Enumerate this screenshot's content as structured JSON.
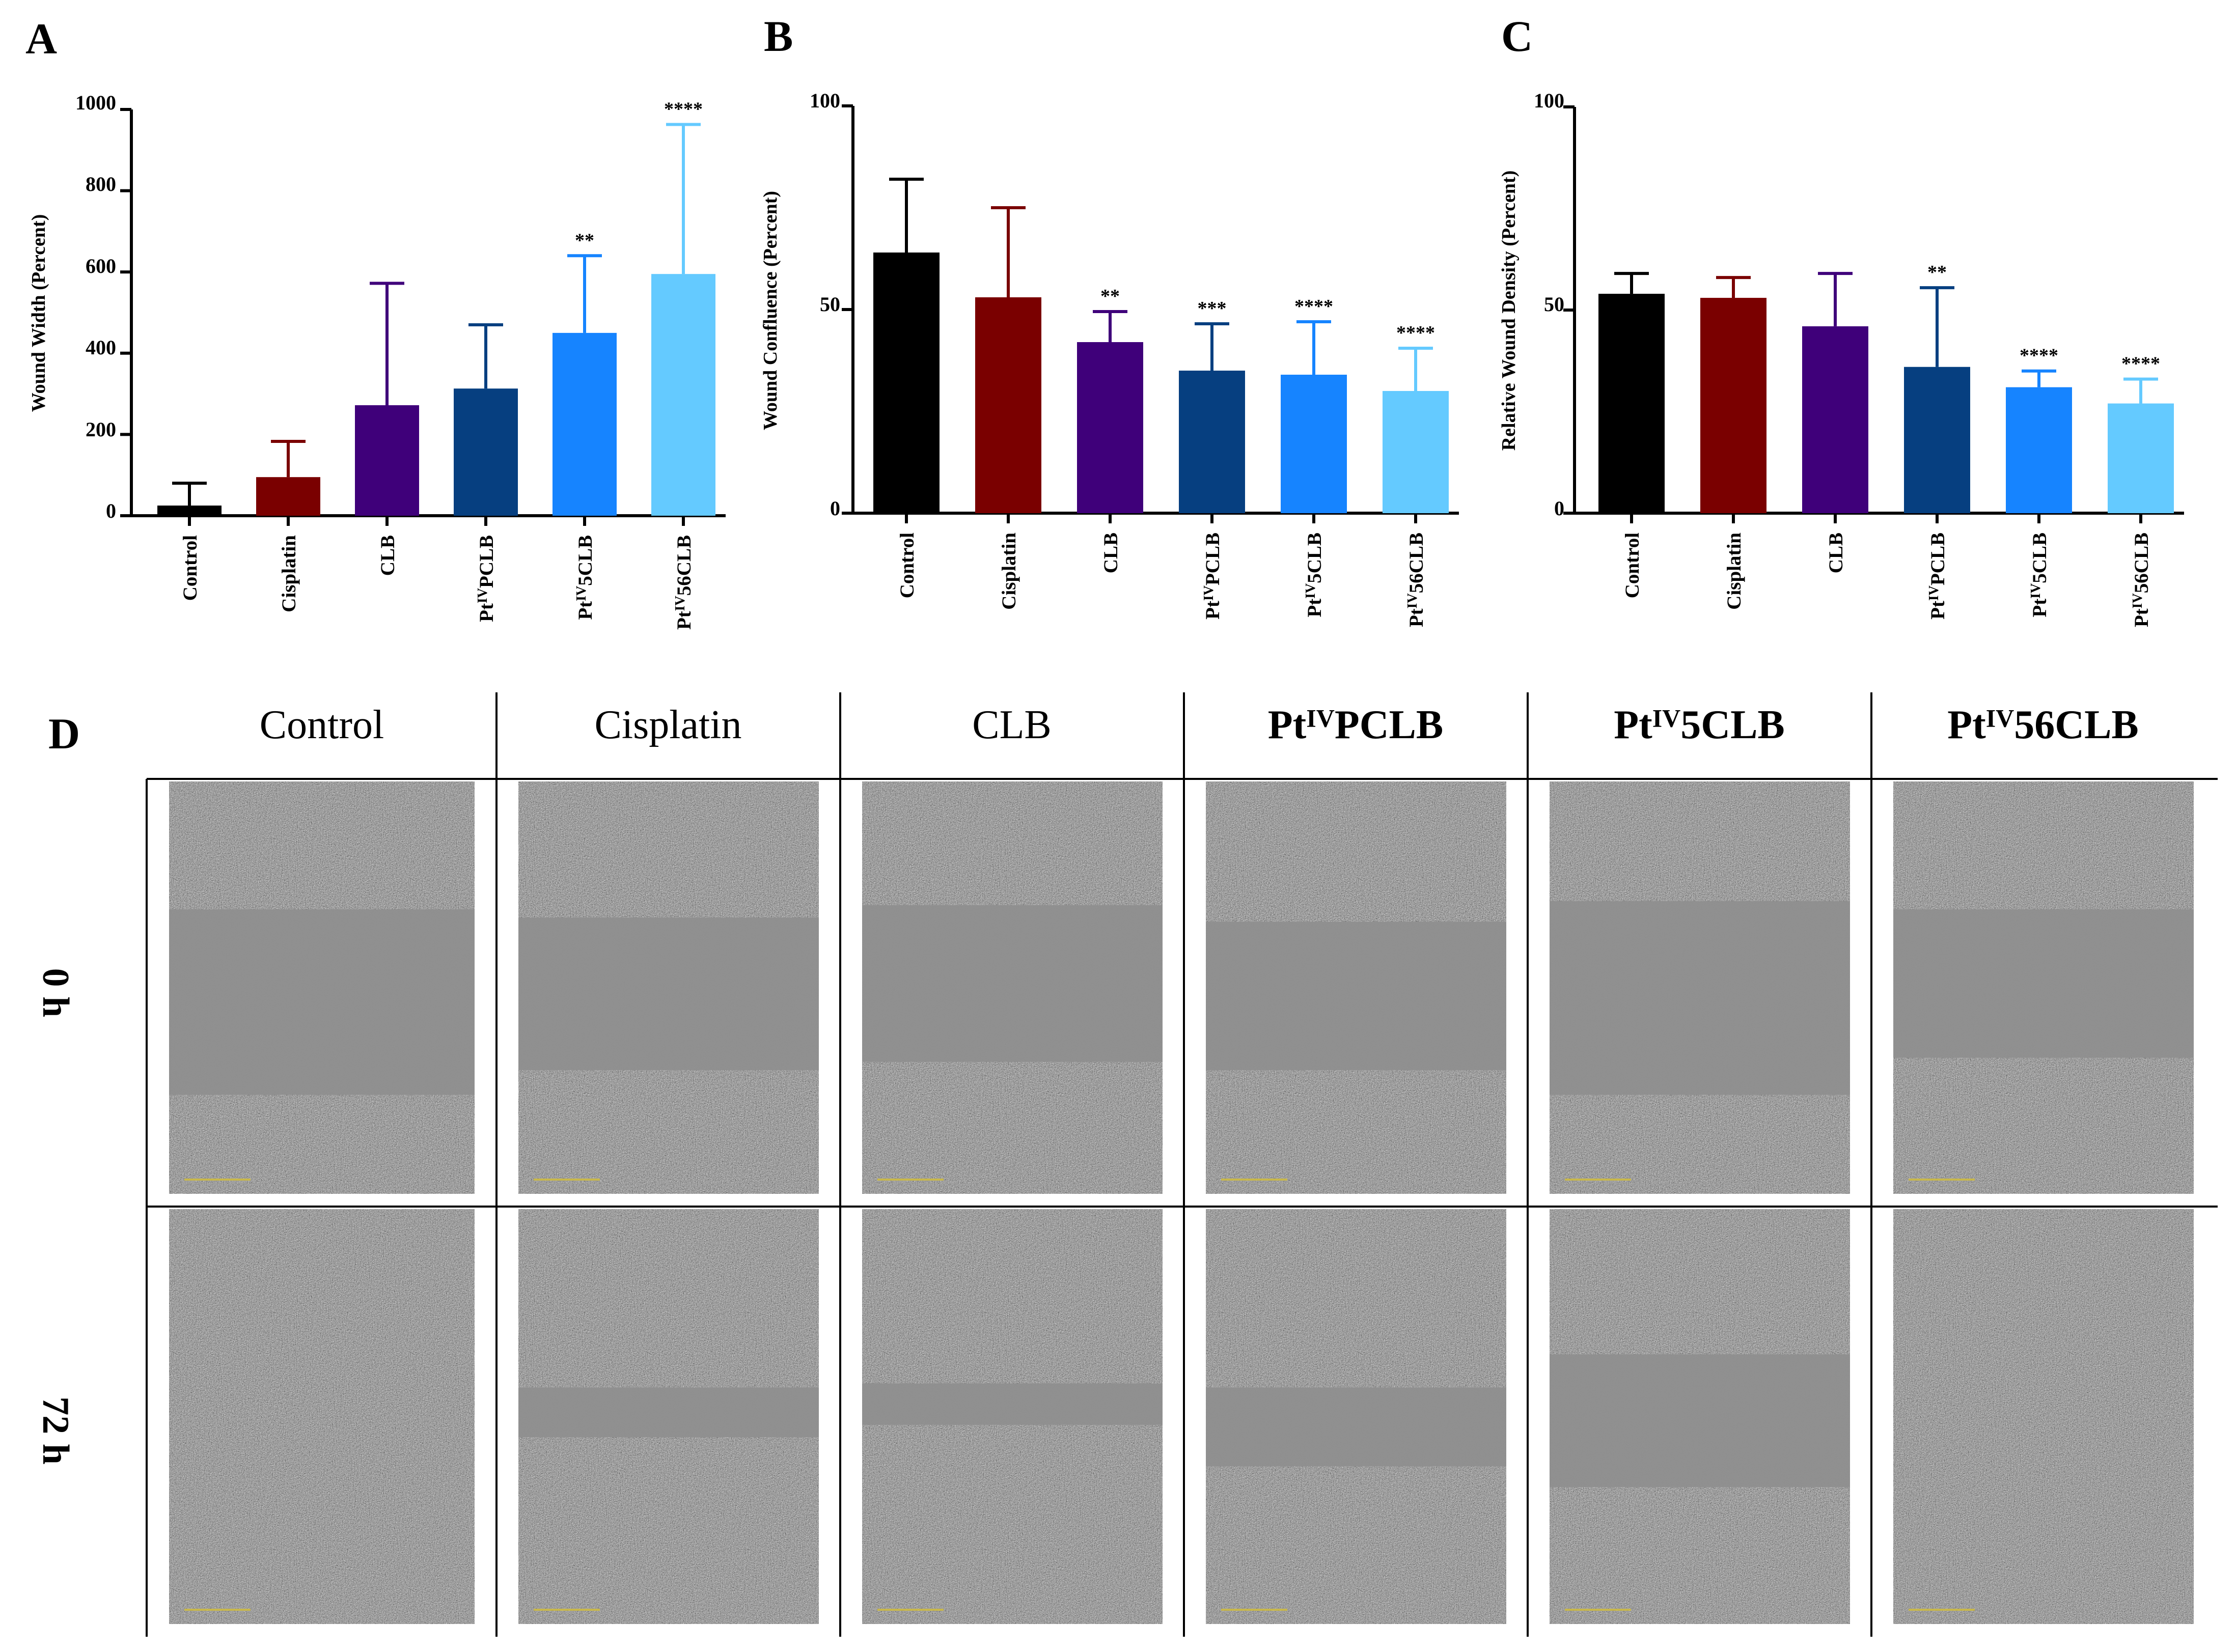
{
  "panels": {
    "a": "A",
    "b": "B",
    "c": "C",
    "d": "D"
  },
  "palette": [
    "#000000",
    "#7a0000",
    "#3f007a",
    "#063f80",
    "#1684ff",
    "#64caff"
  ],
  "chart_data": [
    {
      "type": "bar",
      "panel": "A",
      "ylabel": "Wound Width (Percent)",
      "ylim": [
        0,
        1000
      ],
      "yticks": [
        "0",
        "200",
        "400",
        "600",
        "800",
        "1000"
      ],
      "categories": [
        "Control",
        "Cisplatin",
        "CLB",
        "PtIVPCLB",
        "PtIV5CLB",
        "PtIV56CLB"
      ],
      "values": [
        25,
        95,
        272,
        313,
        450,
        595
      ],
      "errors": [
        55,
        88,
        300,
        157,
        190,
        368
      ],
      "significance": [
        "",
        "",
        "",
        "",
        "**",
        "****"
      ]
    },
    {
      "type": "bar",
      "panel": "B",
      "ylabel": "Wound Confluence (Percent)",
      "ylim": [
        0,
        100
      ],
      "yticks": [
        "0",
        "50",
        "100"
      ],
      "categories": [
        "Control",
        "Cisplatin",
        "CLB",
        "PtIVPCLB",
        "PtIV5CLB",
        "PtIV56CLB"
      ],
      "values": [
        64,
        53,
        42,
        35,
        34,
        30
      ],
      "errors": [
        18,
        22,
        7.5,
        11.5,
        13,
        10.5
      ],
      "significance": [
        "",
        "",
        "**",
        "***",
        "****",
        "****"
      ]
    },
    {
      "type": "bar",
      "panel": "C",
      "ylabel": "Relative Wound Density (Percent)",
      "ylim": [
        0,
        100
      ],
      "yticks": [
        "0",
        "50",
        "100"
      ],
      "categories": [
        "Control",
        "Cisplatin",
        "CLB",
        "PtIVPCLB",
        "PtIV5CLB",
        "PtIV56CLB"
      ],
      "values": [
        54,
        53,
        46,
        36,
        31,
        27
      ],
      "errors": [
        5,
        5,
        13,
        19.5,
        4,
        6
      ],
      "significance": [
        "",
        "",
        "",
        "**",
        "****",
        "****"
      ]
    }
  ],
  "micrographs": {
    "columns": [
      "Control",
      "Cisplatin",
      "CLB",
      "PtIVPCLB",
      "PtIV5CLB",
      "PtIV56CLB"
    ],
    "rows": [
      "0 h",
      "72 h"
    ]
  }
}
